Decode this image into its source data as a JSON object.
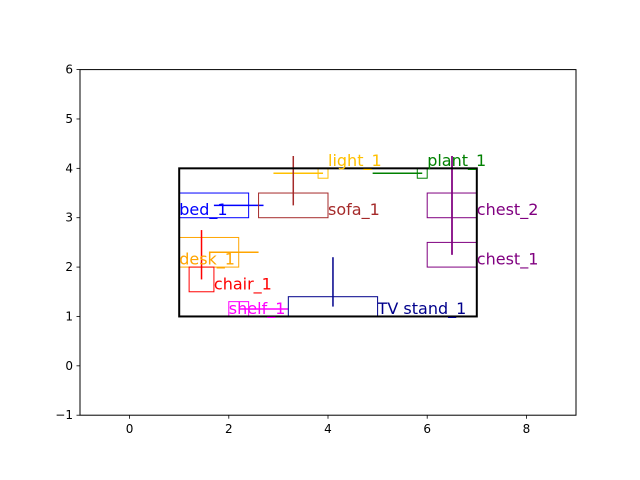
{
  "chart_data": {
    "type": "scatter",
    "title": "",
    "xlabel": "",
    "ylabel": "",
    "xlim": [
      -1,
      9
    ],
    "ylim": [
      -1,
      6
    ],
    "xticks": [
      0,
      2,
      4,
      6,
      8
    ],
    "yticks": [
      -1,
      0,
      1,
      2,
      3,
      4,
      5,
      6
    ],
    "grid": false,
    "room": {
      "x0": 1,
      "y0": 1,
      "x1": 7,
      "y1": 4,
      "color": "#000000"
    },
    "objects": [
      {
        "label": "bed_1",
        "color": "#0000ff",
        "box": [
          1.0,
          3.0,
          2.4,
          3.5
        ],
        "orient": "h",
        "line": [
          1.7,
          2.7,
          3.25
        ],
        "text": [
          1.0,
          3.05
        ]
      },
      {
        "label": "light_1",
        "color": "#ffc000",
        "box": [
          3.8,
          3.8,
          4.0,
          4.0
        ],
        "orient": "h",
        "line": [
          2.9,
          3.9,
          3.9
        ],
        "text": [
          4.0,
          4.05
        ]
      },
      {
        "label": "plant_1",
        "color": "#008000",
        "box": [
          5.8,
          3.8,
          6.0,
          4.0
        ],
        "orient": "h",
        "line": [
          4.9,
          5.9,
          3.9
        ],
        "text": [
          6.0,
          4.05
        ]
      },
      {
        "label": "sofa_1",
        "color": "#a52a2a",
        "box": [
          2.6,
          3.0,
          4.0,
          3.5
        ],
        "orient": "v",
        "line": [
          3.25,
          4.25,
          3.3
        ],
        "text": [
          4.0,
          3.05
        ]
      },
      {
        "label": "chest_2",
        "color": "#800080",
        "box": [
          6.0,
          3.0,
          7.0,
          3.5
        ],
        "orient": "v",
        "line": [
          2.25,
          4.25,
          6.5
        ],
        "text": [
          7.0,
          3.05
        ]
      },
      {
        "label": "chest_1",
        "color": "#800080",
        "box": [
          6.0,
          2.0,
          7.0,
          2.5
        ],
        "orient": "v",
        "line": [
          2.25,
          4.25,
          6.5
        ],
        "text": [
          7.0,
          2.05
        ]
      },
      {
        "label": "desk_1",
        "color": "#ffa500",
        "box": [
          1.0,
          2.0,
          2.2,
          2.6
        ],
        "orient": "h",
        "line": [
          1.6,
          2.6,
          2.3
        ],
        "text": [
          1.0,
          2.05
        ]
      },
      {
        "label": "chair_1",
        "color": "#ff0000",
        "box": [
          1.2,
          1.5,
          1.7,
          2.0
        ],
        "orient": "v",
        "line": [
          1.75,
          2.75,
          1.45
        ],
        "text": [
          1.7,
          1.55
        ]
      },
      {
        "label": "shelf_1",
        "color": "#ff00ff",
        "box": [
          2.0,
          1.0,
          2.4,
          1.3
        ],
        "orient": "h",
        "line": [
          2.2,
          3.2,
          1.15
        ],
        "text": [
          2.0,
          1.05
        ]
      },
      {
        "label": "TV stand_1",
        "color": "#00008b",
        "box": [
          3.2,
          1.0,
          5.0,
          1.4
        ],
        "orient": "v",
        "line": [
          1.2,
          2.2,
          4.1
        ],
        "text": [
          5.0,
          1.05
        ]
      }
    ]
  }
}
